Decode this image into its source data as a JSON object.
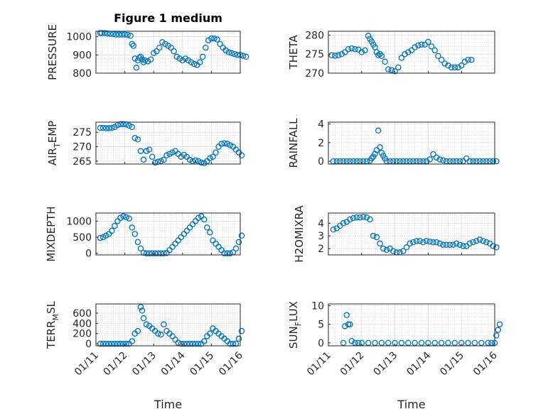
{
  "chart_data": [
    {
      "type": "scatter",
      "title": "Figure 1 medium",
      "xlabel": "",
      "ylabel": "PRESSURE",
      "ylim": [
        800,
        1030
      ],
      "yticks": [
        "800",
        "900",
        "1000"
      ],
      "yticks_v": [
        800,
        900,
        1000
      ],
      "xticks": [],
      "grid": true,
      "color": "#0072bd",
      "x": [
        0.15,
        0.2,
        0.3,
        0.4,
        0.5,
        0.6,
        0.7,
        0.8,
        0.9,
        1.0,
        1.1,
        1.2,
        1.25,
        1.3,
        1.35,
        1.4,
        1.45,
        1.5,
        1.55,
        1.6,
        1.65,
        1.7,
        1.8,
        1.9,
        2.0,
        2.1,
        2.2,
        2.3,
        2.4,
        2.5,
        2.6,
        2.7,
        2.8,
        2.9,
        3.0,
        3.1,
        3.2,
        3.3,
        3.4,
        3.5,
        3.6,
        3.7,
        3.8,
        3.9,
        4.0,
        4.1,
        4.2,
        4.3,
        4.4,
        4.5,
        4.6,
        4.7,
        4.8,
        4.9,
        5.0,
        5.1,
        5.2
      ],
      "y": [
        1020,
        1020,
        1020,
        1018,
        1016,
        1015,
        1012,
        1012,
        1012,
        1012,
        1010,
        1005,
        960,
        950,
        880,
        830,
        870,
        885,
        890,
        875,
        860,
        870,
        865,
        875,
        910,
        920,
        940,
        970,
        960,
        950,
        940,
        920,
        890,
        880,
        870,
        880,
        870,
        860,
        850,
        845,
        860,
        890,
        940,
        980,
        990,
        990,
        985,
        960,
        940,
        925,
        915,
        910,
        905,
        900,
        900,
        895,
        890
      ]
    },
    {
      "type": "scatter",
      "title": "",
      "xlabel": "",
      "ylabel": "THETA",
      "ylim": [
        270,
        281
      ],
      "yticks": [
        "270",
        "275",
        "280"
      ],
      "yticks_v": [
        270,
        275,
        280
      ],
      "xticks": [],
      "grid": true,
      "color": "#0072bd",
      "x": [
        0.1,
        0.2,
        0.3,
        0.4,
        0.5,
        0.6,
        0.7,
        0.8,
        0.9,
        1.0,
        1.1,
        1.2,
        1.25,
        1.3,
        1.35,
        1.4,
        1.45,
        1.5,
        1.55,
        1.6,
        1.7,
        1.8,
        1.9,
        2.0,
        2.1,
        2.2,
        2.3,
        2.4,
        2.5,
        2.6,
        2.7,
        2.8,
        2.9,
        3.0,
        3.1,
        3.2,
        3.3,
        3.4,
        3.5,
        3.6,
        3.7,
        3.8,
        3.9,
        4.0,
        4.1,
        4.2,
        4.3
      ],
      "y": [
        274.7,
        274.6,
        274.7,
        275.0,
        275.5,
        276.3,
        276.5,
        276.3,
        276.2,
        275.5,
        276.0,
        279.8,
        279.0,
        278.3,
        277.5,
        276.8,
        275.5,
        274.7,
        275.0,
        274.5,
        273.0,
        271.0,
        270.8,
        270.5,
        271.5,
        274.0,
        275.0,
        275.5,
        276.0,
        276.8,
        277.3,
        277.5,
        277.5,
        278.2,
        277.0,
        276.0,
        274.5,
        273.5,
        272.5,
        272.0,
        271.5,
        271.5,
        271.5,
        272.0,
        273.0,
        273.5,
        273.5
      ]
    },
    {
      "type": "scatter",
      "title": "",
      "xlabel": "",
      "ylabel": "AIR_TEMP",
      "ylim": [
        264,
        278.5
      ],
      "yticks": [
        "265",
        "270",
        "275"
      ],
      "yticks_v": [
        265,
        270,
        275
      ],
      "xticks": [],
      "grid": true,
      "color": "#0072bd",
      "x": [
        0.15,
        0.25,
        0.35,
        0.45,
        0.55,
        0.65,
        0.75,
        0.85,
        0.95,
        1.05,
        1.15,
        1.25,
        1.35,
        1.45,
        1.55,
        1.65,
        1.75,
        1.85,
        1.95,
        2.05,
        2.15,
        2.25,
        2.35,
        2.45,
        2.55,
        2.65,
        2.75,
        2.85,
        2.95,
        3.05,
        3.15,
        3.25,
        3.35,
        3.45,
        3.55,
        3.65,
        3.75,
        3.85,
        3.95,
        4.05,
        4.15,
        4.25,
        4.35,
        4.45,
        4.55,
        4.65,
        4.75,
        4.85,
        4.95,
        5.05
      ],
      "y": [
        276.5,
        276.5,
        276.4,
        276.4,
        276.5,
        276.8,
        277.5,
        277.8,
        277.8,
        277.7,
        277.3,
        276.8,
        273.0,
        272.5,
        268.5,
        265.5,
        268.5,
        269.0,
        266.5,
        264.5,
        264.8,
        265.0,
        265.5,
        267.0,
        267.5,
        268.0,
        268.5,
        267.5,
        266.5,
        267.2,
        266.5,
        265.5,
        265.0,
        265.3,
        265.0,
        264.5,
        264.3,
        265.0,
        266.0,
        266.5,
        268.0,
        270.0,
        271.0,
        271.2,
        271.0,
        270.5,
        270.0,
        269.0,
        268.0,
        267.0
      ]
    },
    {
      "type": "scatter",
      "title": "",
      "xlabel": "",
      "ylabel": "RAINFALL",
      "ylim": [
        -0.3,
        4.2
      ],
      "yticks": [
        "0",
        "2",
        "4"
      ],
      "yticks_v": [
        0,
        2,
        4
      ],
      "xticks": [],
      "grid": true,
      "color": "#0072bd",
      "x": [
        0.15,
        0.25,
        0.35,
        0.45,
        0.55,
        0.65,
        0.75,
        0.85,
        0.95,
        1.05,
        1.15,
        1.25,
        1.3,
        1.35,
        1.4,
        1.45,
        1.5,
        1.55,
        1.6,
        1.65,
        1.7,
        1.75,
        1.85,
        1.95,
        2.05,
        2.15,
        2.25,
        2.35,
        2.45,
        2.55,
        2.65,
        2.75,
        2.85,
        2.95,
        3.05,
        3.15,
        3.25,
        3.35,
        3.45,
        3.55,
        3.65,
        3.75,
        3.85,
        3.95,
        4.05,
        4.15,
        4.25,
        4.35,
        4.45,
        4.55,
        4.65,
        4.75,
        4.85,
        4.95,
        5.05
      ],
      "y": [
        0,
        0,
        0,
        0,
        0,
        0,
        0,
        0,
        0,
        0,
        0,
        0.05,
        0.3,
        0.5,
        0.8,
        1.2,
        3.3,
        1.5,
        0.9,
        0.6,
        0.3,
        0,
        0,
        0,
        0,
        0,
        0,
        0,
        0,
        0,
        0,
        0,
        0,
        0,
        0.2,
        0.75,
        0.4,
        0.2,
        0.1,
        0,
        0,
        0,
        0,
        0,
        0,
        0.3,
        0,
        0,
        0,
        0,
        0,
        0,
        0,
        0,
        0
      ]
    },
    {
      "type": "scatter",
      "title": "",
      "xlabel": "",
      "ylabel": "MIXDEPTH",
      "ylim": [
        -50,
        1250
      ],
      "yticks": [
        "0",
        "500",
        "1000"
      ],
      "yticks_v": [
        0,
        500,
        1000
      ],
      "xticks": [],
      "grid": true,
      "color": "#0072bd",
      "x": [
        0.15,
        0.25,
        0.35,
        0.45,
        0.55,
        0.65,
        0.75,
        0.85,
        0.95,
        1.05,
        1.15,
        1.25,
        1.35,
        1.45,
        1.55,
        1.65,
        1.75,
        1.85,
        1.95,
        2.05,
        2.15,
        2.25,
        2.35,
        2.45,
        2.55,
        2.65,
        2.75,
        2.85,
        2.95,
        3.05,
        3.15,
        3.25,
        3.35,
        3.45,
        3.55,
        3.65,
        3.75,
        3.85,
        3.95,
        4.05,
        4.15,
        4.25,
        4.35,
        4.45,
        4.55,
        4.65,
        4.75,
        4.85,
        4.95,
        5.05
      ],
      "y": [
        480,
        500,
        550,
        600,
        700,
        850,
        1000,
        1100,
        1150,
        1120,
        1080,
        800,
        600,
        350,
        150,
        20,
        0,
        0,
        0,
        0,
        0,
        0,
        0,
        10,
        100,
        200,
        300,
        400,
        500,
        600,
        700,
        800,
        900,
        1000,
        1100,
        1150,
        1050,
        800,
        650,
        400,
        300,
        200,
        100,
        0,
        0,
        0,
        30,
        150,
        350,
        550
      ]
    },
    {
      "type": "scatter",
      "title": "",
      "xlabel": "",
      "ylabel": "H2OMIXRA",
      "ylim": [
        1.5,
        4.8
      ],
      "yticks": [
        "2",
        "3",
        "4"
      ],
      "yticks_v": [
        2,
        3,
        4
      ],
      "xticks": [],
      "grid": true,
      "color": "#0072bd",
      "x": [
        0.15,
        0.25,
        0.35,
        0.45,
        0.55,
        0.65,
        0.75,
        0.85,
        0.95,
        1.05,
        1.15,
        1.25,
        1.35,
        1.45,
        1.55,
        1.65,
        1.75,
        1.85,
        1.95,
        2.05,
        2.15,
        2.25,
        2.35,
        2.45,
        2.55,
        2.65,
        2.75,
        2.85,
        2.95,
        3.05,
        3.15,
        3.25,
        3.35,
        3.45,
        3.55,
        3.65,
        3.75,
        3.85,
        3.95,
        4.05,
        4.15,
        4.25,
        4.35,
        4.45,
        4.55,
        4.65,
        4.75,
        4.85,
        4.95,
        5.05
      ],
      "y": [
        3.5,
        3.6,
        3.8,
        4.0,
        4.1,
        4.3,
        4.4,
        4.45,
        4.45,
        4.5,
        4.45,
        4.3,
        3.0,
        2.9,
        2.4,
        2.0,
        1.9,
        2.0,
        1.8,
        1.7,
        1.7,
        1.8,
        2.1,
        2.4,
        2.5,
        2.6,
        2.6,
        2.5,
        2.6,
        2.55,
        2.5,
        2.5,
        2.4,
        2.3,
        2.3,
        2.3,
        2.3,
        2.4,
        2.3,
        2.2,
        2.2,
        2.4,
        2.5,
        2.6,
        2.7,
        2.6,
        2.5,
        2.4,
        2.2,
        2.1
      ]
    },
    {
      "type": "scatter",
      "title": "",
      "xlabel": "Time",
      "ylabel": "TERR_MSL",
      "ylim": [
        -40,
        780
      ],
      "yticks": [
        "0",
        "200",
        "400",
        "600"
      ],
      "yticks_v": [
        0,
        200,
        400,
        600
      ],
      "xticks": [
        "01/11",
        "01/12",
        "01/13",
        "01/14",
        "01/15",
        "01/16"
      ],
      "xticks_v": [
        0,
        1,
        2,
        3,
        4,
        5
      ],
      "grid": true,
      "color": "#0072bd",
      "x": [
        0.15,
        0.25,
        0.35,
        0.45,
        0.55,
        0.65,
        0.75,
        0.85,
        0.95,
        1.05,
        1.15,
        1.25,
        1.35,
        1.45,
        1.55,
        1.6,
        1.65,
        1.75,
        1.85,
        1.95,
        2.05,
        2.15,
        2.25,
        2.35,
        2.45,
        2.55,
        2.65,
        2.75,
        2.85,
        2.95,
        3.05,
        3.15,
        3.25,
        3.35,
        3.45,
        3.55,
        3.65,
        3.75,
        3.85,
        3.95,
        4.05,
        4.15,
        4.25,
        4.35,
        4.45,
        4.55,
        4.65,
        4.75,
        4.85,
        4.95,
        5.05
      ],
      "y": [
        0,
        0,
        0,
        0,
        0,
        0,
        0,
        0,
        0,
        0,
        0,
        50,
        200,
        250,
        720,
        650,
        500,
        380,
        350,
        300,
        250,
        200,
        180,
        380,
        250,
        200,
        150,
        80,
        20,
        0,
        0,
        0,
        0,
        0,
        0,
        0,
        0,
        50,
        150,
        200,
        300,
        250,
        200,
        150,
        100,
        50,
        0,
        0,
        0,
        100,
        250
      ]
    },
    {
      "type": "scatter",
      "title": "",
      "xlabel": "Time",
      "ylabel": "SUN_FLUX",
      "ylim": [
        -0.8,
        10.5
      ],
      "yticks": [
        "0",
        "5",
        "10"
      ],
      "yticks_v": [
        0,
        5,
        10
      ],
      "xticks": [
        "01/11",
        "01/12",
        "01/13",
        "01/14",
        "01/15",
        "01/16"
      ],
      "xticks_v": [
        0,
        1,
        2,
        3,
        4,
        5
      ],
      "grid": true,
      "color": "#0072bd",
      "x": [
        0.45,
        0.5,
        0.55,
        0.6,
        0.65,
        0.7,
        0.8,
        0.9,
        1.0,
        1.2,
        1.4,
        1.6,
        1.8,
        2.0,
        2.2,
        2.4,
        2.6,
        2.8,
        3.0,
        3.2,
        3.4,
        3.6,
        3.8,
        4.0,
        4.2,
        4.4,
        4.6,
        4.8,
        4.9,
        5.0,
        5.05,
        5.1,
        5.15
      ],
      "y": [
        0,
        4.5,
        7.5,
        5.0,
        5.0,
        0.5,
        0,
        0,
        0,
        0,
        0,
        0,
        0,
        0,
        0,
        0,
        0,
        0,
        0,
        0,
        0,
        0,
        0,
        0,
        0,
        0,
        0,
        0,
        0,
        0,
        2.0,
        3.5,
        5.0
      ]
    }
  ]
}
